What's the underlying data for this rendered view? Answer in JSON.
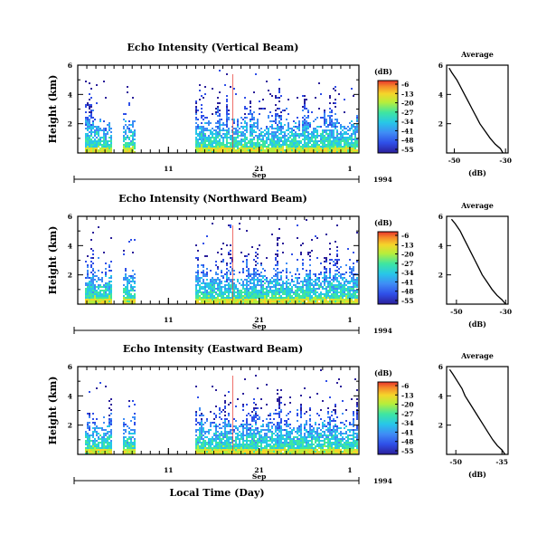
{
  "figure": {
    "ylabel": "Height (km)",
    "xlabel": "Local Time (Day)",
    "colorbar_unit": "(dB)",
    "colorbar_ticks": [
      "-6",
      "-13",
      "-20",
      "-27",
      "-34",
      "-41",
      "-48",
      "-55"
    ],
    "colormap": [
      "#2b1f9a",
      "#2f4fe8",
      "#3f8cf5",
      "#27c7e8",
      "#3fe6a0",
      "#b7ee3b",
      "#f5d52a",
      "#f58a2a",
      "#e8332b"
    ],
    "date_axis": {
      "ticks": [
        "11",
        "21",
        "1"
      ],
      "month": "Sep",
      "year": "1994"
    },
    "avg_title": "Average",
    "avg_xlabel": "(dB)"
  },
  "chart_data": [
    {
      "type": "heatmap",
      "title": "Echo Intensity (Vertical Beam)",
      "ylabel": "Height (km)",
      "ylim": [
        0,
        6
      ],
      "yticks": [
        "6",
        "4",
        "2"
      ],
      "x_tick_labels": [
        "11",
        "21",
        "1"
      ],
      "x_month_label": "Sep",
      "x_year_label": "1994",
      "colorbar": {
        "label": "(dB)",
        "range": [
          -55,
          -6
        ],
        "ticks": [
          -6,
          -13,
          -20,
          -27,
          -34,
          -41,
          -48,
          -55
        ]
      },
      "data_gaps_days": [
        [
          4.6,
          5.9
        ],
        [
          7.3,
          13.8
        ]
      ],
      "average_profile": {
        "title": "Average",
        "xlabel": "(dB)",
        "xlim": [
          -53,
          -29
        ],
        "xticks": [
          "-50",
          "-30"
        ],
        "yticks": [
          "6",
          "4",
          "2"
        ],
        "height_km": [
          0.0,
          0.3,
          0.6,
          1.0,
          1.5,
          2.0,
          2.5,
          3.0,
          3.5,
          4.0,
          4.5,
          5.0,
          5.5,
          5.8
        ],
        "intensity_db": [
          -31,
          -32,
          -34,
          -36,
          -38,
          -40,
          -41.5,
          -43,
          -44.5,
          -46,
          -47.5,
          -49,
          -51,
          -52
        ]
      }
    },
    {
      "type": "heatmap",
      "title": "Echo Intensity (Northward Beam)",
      "ylabel": "Height (km)",
      "ylim": [
        0,
        6
      ],
      "yticks": [
        "6",
        "4",
        "2"
      ],
      "x_tick_labels": [
        "11",
        "21",
        "1"
      ],
      "x_month_label": "Sep",
      "x_year_label": "1994",
      "colorbar": {
        "label": "(dB)",
        "range": [
          -55,
          -6
        ],
        "ticks": [
          -6,
          -13,
          -20,
          -27,
          -34,
          -41,
          -48,
          -55
        ]
      },
      "data_gaps_days": [
        [
          4.6,
          5.9
        ],
        [
          7.3,
          13.8
        ]
      ],
      "average_profile": {
        "title": "Average",
        "xlabel": "(dB)",
        "xlim": [
          -54,
          -29
        ],
        "xticks": [
          "-50",
          "-30"
        ],
        "yticks": [
          "6",
          "4",
          "2"
        ],
        "height_km": [
          0.0,
          0.3,
          0.6,
          1.0,
          1.5,
          2.0,
          2.5,
          3.0,
          3.5,
          4.0,
          4.5,
          5.0,
          5.5,
          5.8
        ],
        "intensity_db": [
          -30,
          -31.5,
          -33.5,
          -35.5,
          -37.5,
          -39.5,
          -41,
          -42.5,
          -44,
          -45.5,
          -47,
          -48.5,
          -50.5,
          -52
        ]
      }
    },
    {
      "type": "heatmap",
      "title": "Echo Intensity (Eastward Beam)",
      "ylabel": "Height (km)",
      "ylim": [
        0,
        6
      ],
      "yticks": [
        "6",
        "4",
        "2"
      ],
      "x_tick_labels": [
        "11",
        "21",
        "1"
      ],
      "x_month_label": "Sep",
      "x_year_label": "1994",
      "xlabel": "Local Time (Day)",
      "colorbar": {
        "label": "(dB)",
        "range": [
          -55,
          -6
        ],
        "ticks": [
          -6,
          -13,
          -20,
          -27,
          -34,
          -41,
          -48,
          -55
        ]
      },
      "data_gaps_days": [
        [
          4.6,
          5.9
        ],
        [
          7.3,
          13.8
        ]
      ],
      "average_profile": {
        "title": "Average",
        "xlabel": "(dB)",
        "xlim": [
          -53,
          -33
        ],
        "xticks": [
          "-50",
          "-35"
        ],
        "yticks": [
          "6",
          "4",
          "2"
        ],
        "height_km": [
          0.0,
          0.3,
          0.6,
          1.0,
          1.5,
          2.0,
          2.5,
          3.0,
          3.5,
          4.0,
          4.5,
          5.0,
          5.5,
          5.8
        ],
        "intensity_db": [
          -34,
          -35,
          -36.5,
          -38,
          -39.5,
          -41,
          -42.5,
          -44,
          -45.5,
          -47,
          -48,
          -49.5,
          -51,
          -52
        ]
      }
    }
  ]
}
